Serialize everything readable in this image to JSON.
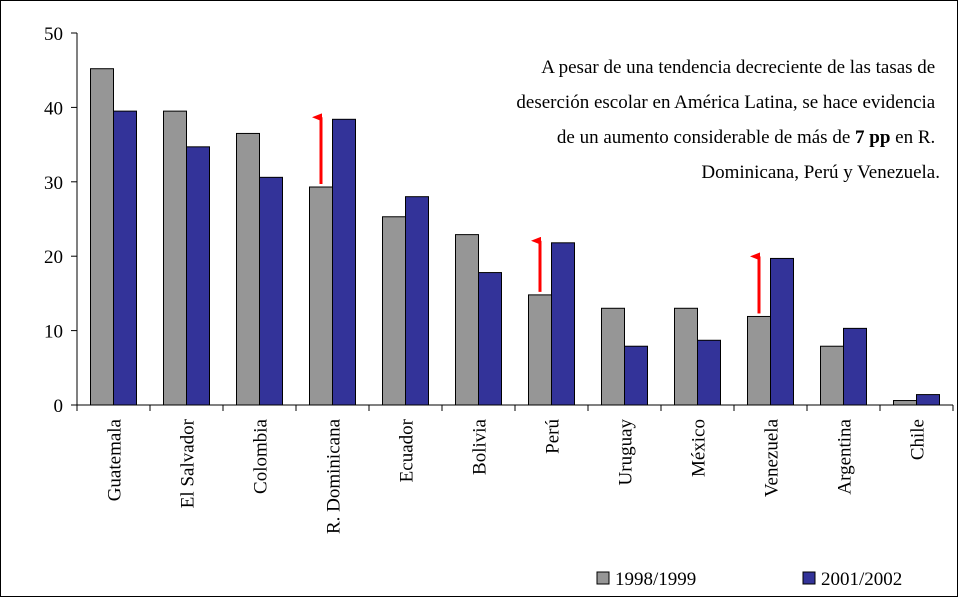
{
  "chart_data": {
    "type": "bar",
    "categories": [
      "Guatemala",
      "El Salvador",
      "Colombia",
      "R. Dominicana",
      "Ecuador",
      "Bolivia",
      "Perú",
      "Uruguay",
      "México",
      "Venezuela",
      "Argentina",
      "Chile"
    ],
    "series": [
      {
        "name": "1998/1999",
        "color": "#969696",
        "values": [
          45.2,
          39.5,
          36.5,
          29.3,
          25.3,
          22.9,
          14.8,
          13.0,
          13.0,
          11.9,
          7.9,
          0.6
        ]
      },
      {
        "name": "2001/2002",
        "color": "#333399",
        "values": [
          39.5,
          34.7,
          30.6,
          38.4,
          28.0,
          17.8,
          21.8,
          7.9,
          8.7,
          19.7,
          10.3,
          1.4
        ]
      }
    ],
    "ylim": [
      0,
      50
    ],
    "yticks": [
      0,
      10,
      20,
      30,
      40,
      50
    ],
    "annotation": [
      "A pesar de una tendencia decreciente de las tasas de",
      "deserción escolar en América Latina, se hace evidencia",
      "de un aumento considerable de más de",
      "7 pp",
      "en R.",
      "Dominicana, Perú y Venezuela."
    ],
    "legend": "bottom-right"
  }
}
